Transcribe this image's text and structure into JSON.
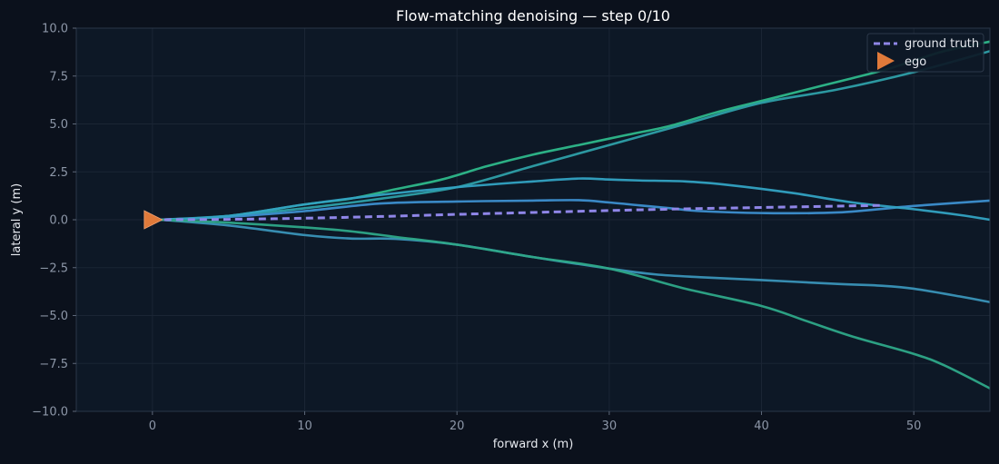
{
  "chart_data": {
    "type": "line",
    "title": "Flow-matching denoising — step 0/10",
    "xlabel": "forward x (m)",
    "ylabel": "lateral y (m)",
    "xlim": [
      -5,
      55
    ],
    "ylim": [
      -10,
      10
    ],
    "xticks": [
      0,
      10,
      20,
      30,
      40,
      50
    ],
    "yticks": [
      -10.0,
      -7.5,
      -5.0,
      -2.5,
      0.0,
      2.5,
      5.0,
      7.5,
      10.0
    ],
    "xtick_labels": [
      "0",
      "10",
      "20",
      "30",
      "40",
      "50"
    ],
    "ytick_labels": [
      "−10.0",
      "−7.5",
      "−5.0",
      "−2.5",
      "0.0",
      "2.5",
      "5.0",
      "7.5",
      "10.0"
    ],
    "grid": true,
    "legend_position": "top-right",
    "legend": [
      {
        "label": "ground truth",
        "kind": "dashed-line",
        "color": "#8f86e8"
      },
      {
        "label": "ego",
        "kind": "triangle-marker",
        "color": "#e07a3a"
      }
    ],
    "ego": {
      "x": 0,
      "y": 0,
      "color": "#e07a3a"
    },
    "ground_truth": {
      "color": "#8f86e8",
      "x": [
        0,
        5,
        10,
        15,
        20,
        25,
        30,
        35,
        40,
        45,
        48
      ],
      "y": [
        0,
        0.02,
        0.08,
        0.17,
        0.28,
        0.38,
        0.48,
        0.57,
        0.64,
        0.71,
        0.75
      ]
    },
    "samples": [
      {
        "color": "#2eb88a",
        "x": [
          0.5,
          5,
          10,
          13,
          16,
          19,
          22,
          25,
          28,
          31,
          34,
          37,
          40,
          43,
          45,
          48,
          50,
          52,
          55
        ],
        "y": [
          0,
          0.2,
          0.8,
          1.1,
          1.6,
          2.1,
          2.8,
          3.4,
          3.9,
          4.4,
          4.9,
          5.6,
          6.2,
          6.8,
          7.2,
          7.8,
          8.3,
          8.8,
          9.3
        ]
      },
      {
        "color": "#2e9fa8",
        "x": [
          0.5,
          5,
          10,
          15,
          20,
          25,
          30,
          35,
          40,
          45,
          50,
          55
        ],
        "y": [
          0,
          0.2,
          0.6,
          1.1,
          1.7,
          2.8,
          3.9,
          5.0,
          6.1,
          6.8,
          7.7,
          8.8
        ]
      },
      {
        "color": "#3d8fcf",
        "x": [
          0.5,
          5,
          10,
          15,
          20,
          25,
          28,
          30,
          32,
          34,
          36,
          40,
          45,
          50,
          55
        ],
        "y": [
          0,
          0.15,
          0.45,
          0.85,
          0.95,
          1.0,
          1.02,
          0.9,
          0.75,
          0.6,
          0.45,
          0.35,
          0.38,
          0.72,
          1.0
        ]
      },
      {
        "color": "#33a2c2",
        "x": [
          0.5,
          5,
          10,
          15,
          20,
          25,
          28,
          30,
          32,
          35,
          38,
          42,
          46,
          50,
          53,
          55
        ],
        "y": [
          0,
          0.2,
          0.8,
          1.3,
          1.7,
          2.0,
          2.15,
          2.1,
          2.05,
          2.0,
          1.8,
          1.4,
          0.9,
          0.55,
          0.25,
          0.0
        ]
      },
      {
        "color": "#3a93b8",
        "x": [
          0.5,
          5,
          10,
          13,
          16,
          20,
          25,
          30,
          33,
          36,
          40,
          45,
          48,
          50,
          53,
          55
        ],
        "y": [
          0,
          -0.3,
          -0.8,
          -0.98,
          -1.0,
          -1.3,
          -1.95,
          -2.55,
          -2.85,
          -3.0,
          -3.15,
          -3.35,
          -3.45,
          -3.6,
          -4.0,
          -4.3
        ]
      },
      {
        "color": "#2ea888",
        "x": [
          0.5,
          5,
          10,
          13,
          16,
          20,
          25,
          30,
          35,
          40,
          43,
          46,
          50,
          52,
          55
        ],
        "y": [
          0,
          -0.15,
          -0.4,
          -0.6,
          -0.9,
          -1.3,
          -1.95,
          -2.55,
          -3.6,
          -4.5,
          -5.3,
          -6.1,
          -7.0,
          -7.6,
          -8.8
        ]
      }
    ]
  }
}
